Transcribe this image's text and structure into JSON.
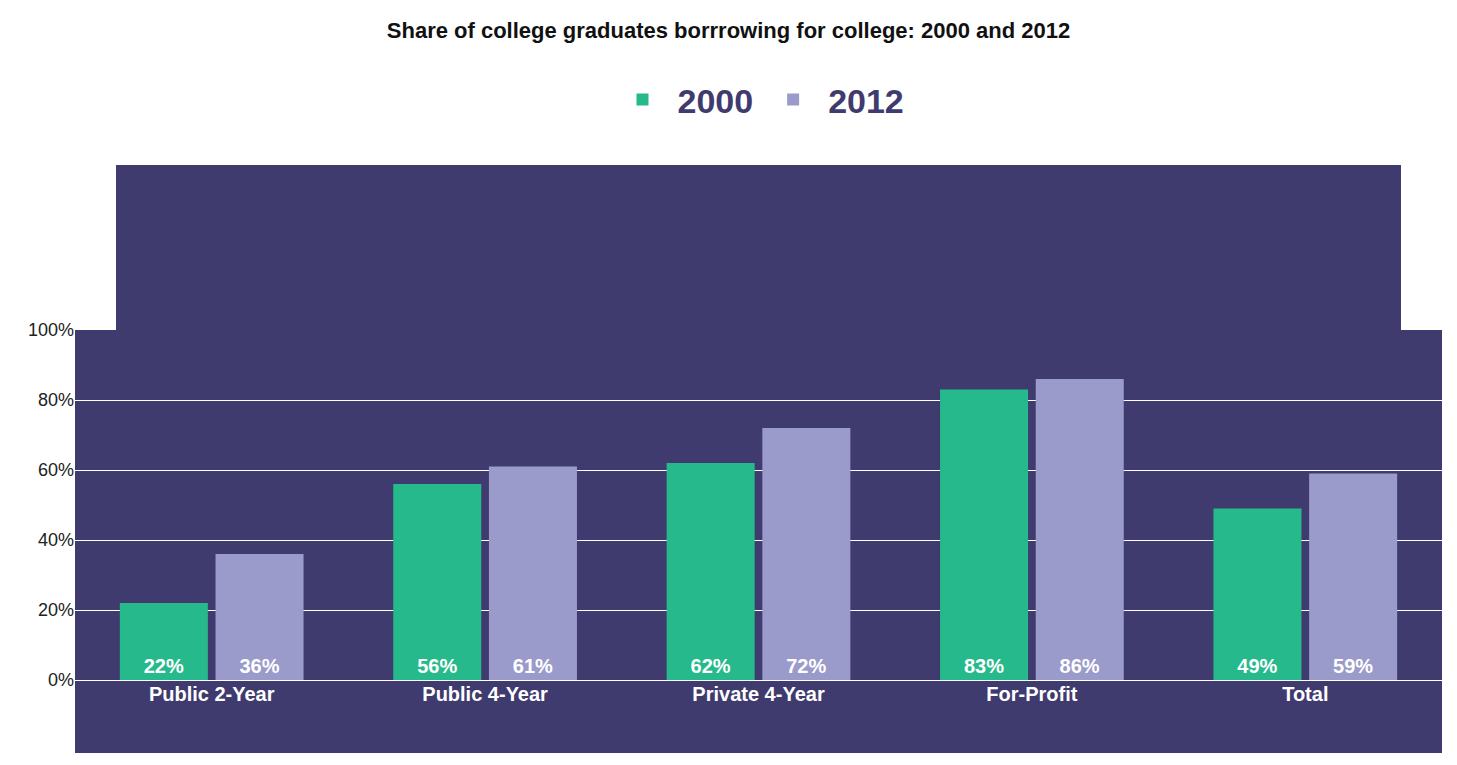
{
  "chart_data": {
    "type": "bar",
    "title": "Share of college graduates borrrowing for college: 2000 and 2012",
    "categories": [
      "Public 2-Year",
      "Public 4-Year",
      "Private 4-Year",
      "For-Profit",
      "Total"
    ],
    "series": [
      {
        "name": "2000",
        "color": "#26b98b",
        "values": [
          22,
          56,
          62,
          83,
          49
        ],
        "value_labels": [
          "22%",
          "56%",
          "62%",
          "83%",
          "49%"
        ]
      },
      {
        "name": "2012",
        "color": "#9a9acb",
        "values": [
          36,
          61,
          72,
          86,
          59
        ],
        "value_labels": [
          "36%",
          "61%",
          "72%",
          "86%",
          "59%"
        ]
      }
    ],
    "ylim": [
      0,
      100
    ],
    "yticks": [
      {
        "value": 0,
        "label": "0%"
      },
      {
        "value": 20,
        "label": "20%"
      },
      {
        "value": 40,
        "label": "40%"
      },
      {
        "value": 60,
        "label": "60%"
      },
      {
        "value": 80,
        "label": "80%"
      },
      {
        "value": 100,
        "label": "100%"
      }
    ],
    "grid": true,
    "data_labels": true,
    "legend": "top"
  }
}
